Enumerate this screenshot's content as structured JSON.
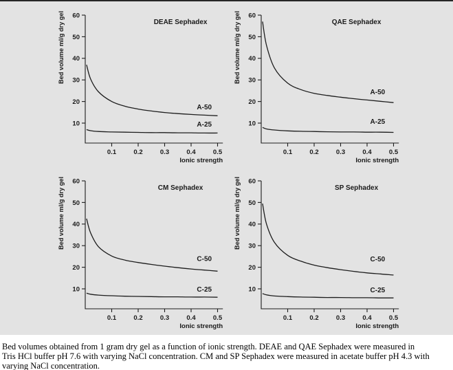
{
  "figure": {
    "background_color": "#e3e3e3",
    "top_border_color": "#262626",
    "line_color": "#1c1c1c",
    "text_color": "#1a1a1a"
  },
  "caption": {
    "lines": [
      " Bed volumes obtained from 1 gram dry gel as a function of ionic strength. DEAE and QAE Sephadex were measured in",
      "Tris HCl buffer pH 7.6 with varying NaCl concentration. CM and SP Sephadex were measured in acetate buffer pH 4.3 with",
      "varying NaCl concentration."
    ]
  },
  "chart_data": [
    {
      "type": "line",
      "title": "DEAE Sephadex",
      "xlabel": "Ionic strength",
      "ylabel": "Bed volume ml/g dry gel",
      "xlim": [
        0,
        0.5
      ],
      "ylim": [
        0,
        60
      ],
      "xticks": [
        "0.1",
        "0.2",
        "0.3",
        "0.4",
        "0.5"
      ],
      "yticks": [
        10,
        20,
        30,
        40,
        50,
        60
      ],
      "grid": false,
      "legend_position": "inline-labels",
      "series": [
        {
          "name": "A-50",
          "x": [
            0.005,
            0.02,
            0.05,
            0.1,
            0.15,
            0.2,
            0.25,
            0.3,
            0.35,
            0.4,
            0.45,
            0.5
          ],
          "y": [
            37,
            30.5,
            24.5,
            20,
            17.8,
            16.5,
            15.6,
            14.9,
            14.4,
            14,
            13.7,
            13.4
          ],
          "label_x": 0.45,
          "label_y": 17.5
        },
        {
          "name": "A-25",
          "x": [
            0.005,
            0.02,
            0.05,
            0.1,
            0.15,
            0.2,
            0.25,
            0.3,
            0.35,
            0.4,
            0.45,
            0.5
          ],
          "y": [
            7,
            6.5,
            6.1,
            5.9,
            5.8,
            5.7,
            5.6,
            5.6,
            5.5,
            5.5,
            5.4,
            5.4
          ],
          "label_x": 0.45,
          "label_y": 9.6
        }
      ]
    },
    {
      "type": "line",
      "title": "QAE Sephadex",
      "xlabel": "Ionic strength",
      "ylabel": "Bed volume ml/g dry gel",
      "xlim": [
        0,
        0.5
      ],
      "ylim": [
        0,
        60
      ],
      "xticks": [
        "0.1",
        "0.2",
        "0.3",
        "0.4",
        "0.5"
      ],
      "yticks": [
        10,
        20,
        30,
        40,
        50,
        60
      ],
      "grid": false,
      "legend_position": "inline-labels",
      "series": [
        {
          "name": "A-50",
          "x": [
            0.005,
            0.02,
            0.05,
            0.1,
            0.15,
            0.2,
            0.25,
            0.3,
            0.35,
            0.4,
            0.45,
            0.5
          ],
          "y": [
            57,
            46,
            35.5,
            28.5,
            25.5,
            23.8,
            22.8,
            22,
            21.3,
            20.7,
            20.1,
            19.5
          ],
          "label_x": 0.44,
          "label_y": 24.5
        },
        {
          "name": "A-25",
          "x": [
            0.005,
            0.02,
            0.05,
            0.1,
            0.15,
            0.2,
            0.25,
            0.3,
            0.35,
            0.4,
            0.45,
            0.5
          ],
          "y": [
            8,
            7.3,
            6.8,
            6.4,
            6.2,
            6.1,
            6,
            5.9,
            5.9,
            5.8,
            5.8,
            5.7
          ],
          "label_x": 0.44,
          "label_y": 10.8
        }
      ]
    },
    {
      "type": "line",
      "title": "CM Sephadex",
      "xlabel": "Ionic strength",
      "ylabel": "Bed volume ml/g dry gel",
      "xlim": [
        0,
        0.5
      ],
      "ylim": [
        0,
        60
      ],
      "xticks": [
        "0.1",
        "0.2",
        "0.3",
        "0.4",
        "0.5"
      ],
      "yticks": [
        10,
        20,
        30,
        40,
        50,
        60
      ],
      "grid": false,
      "legend_position": "inline-labels",
      "series": [
        {
          "name": "C-50",
          "x": [
            0.005,
            0.02,
            0.05,
            0.1,
            0.15,
            0.2,
            0.25,
            0.3,
            0.35,
            0.4,
            0.45,
            0.5
          ],
          "y": [
            42.5,
            36,
            29.5,
            25.2,
            23.3,
            22.2,
            21.3,
            20.5,
            19.8,
            19.2,
            18.7,
            18.2
          ],
          "label_x": 0.45,
          "label_y": 24
        },
        {
          "name": "C-25",
          "x": [
            0.005,
            0.02,
            0.05,
            0.1,
            0.15,
            0.2,
            0.25,
            0.3,
            0.35,
            0.4,
            0.45,
            0.5
          ],
          "y": [
            8,
            7.5,
            7.1,
            6.8,
            6.6,
            6.5,
            6.4,
            6.3,
            6.3,
            6.2,
            6.2,
            6.1
          ],
          "label_x": 0.45,
          "label_y": 9.8
        }
      ]
    },
    {
      "type": "line",
      "title": "SP Sephadex",
      "xlabel": "Ionic strength",
      "ylabel": "Bed volume ml/g dry gel",
      "xlim": [
        0,
        0.5
      ],
      "ylim": [
        0,
        60
      ],
      "xticks": [
        "0.1",
        "0.2",
        "0.3",
        "0.4",
        "0.5"
      ],
      "yticks": [
        10,
        20,
        30,
        40,
        50,
        60
      ],
      "grid": false,
      "legend_position": "inline-labels",
      "series": [
        {
          "name": "C-50",
          "x": [
            0.005,
            0.02,
            0.05,
            0.1,
            0.15,
            0.2,
            0.25,
            0.3,
            0.35,
            0.4,
            0.45,
            0.5
          ],
          "y": [
            49.5,
            40,
            31.5,
            25.5,
            22.8,
            21,
            19.8,
            18.9,
            18.1,
            17.4,
            16.9,
            16.4
          ],
          "label_x": 0.44,
          "label_y": 23.8
        },
        {
          "name": "C-25",
          "x": [
            0.005,
            0.02,
            0.05,
            0.1,
            0.15,
            0.2,
            0.25,
            0.3,
            0.35,
            0.4,
            0.45,
            0.5
          ],
          "y": [
            7.8,
            7.2,
            6.7,
            6.4,
            6.2,
            6.1,
            6,
            6,
            5.9,
            5.9,
            5.8,
            5.8
          ],
          "label_x": 0.44,
          "label_y": 9.5
        }
      ]
    }
  ]
}
